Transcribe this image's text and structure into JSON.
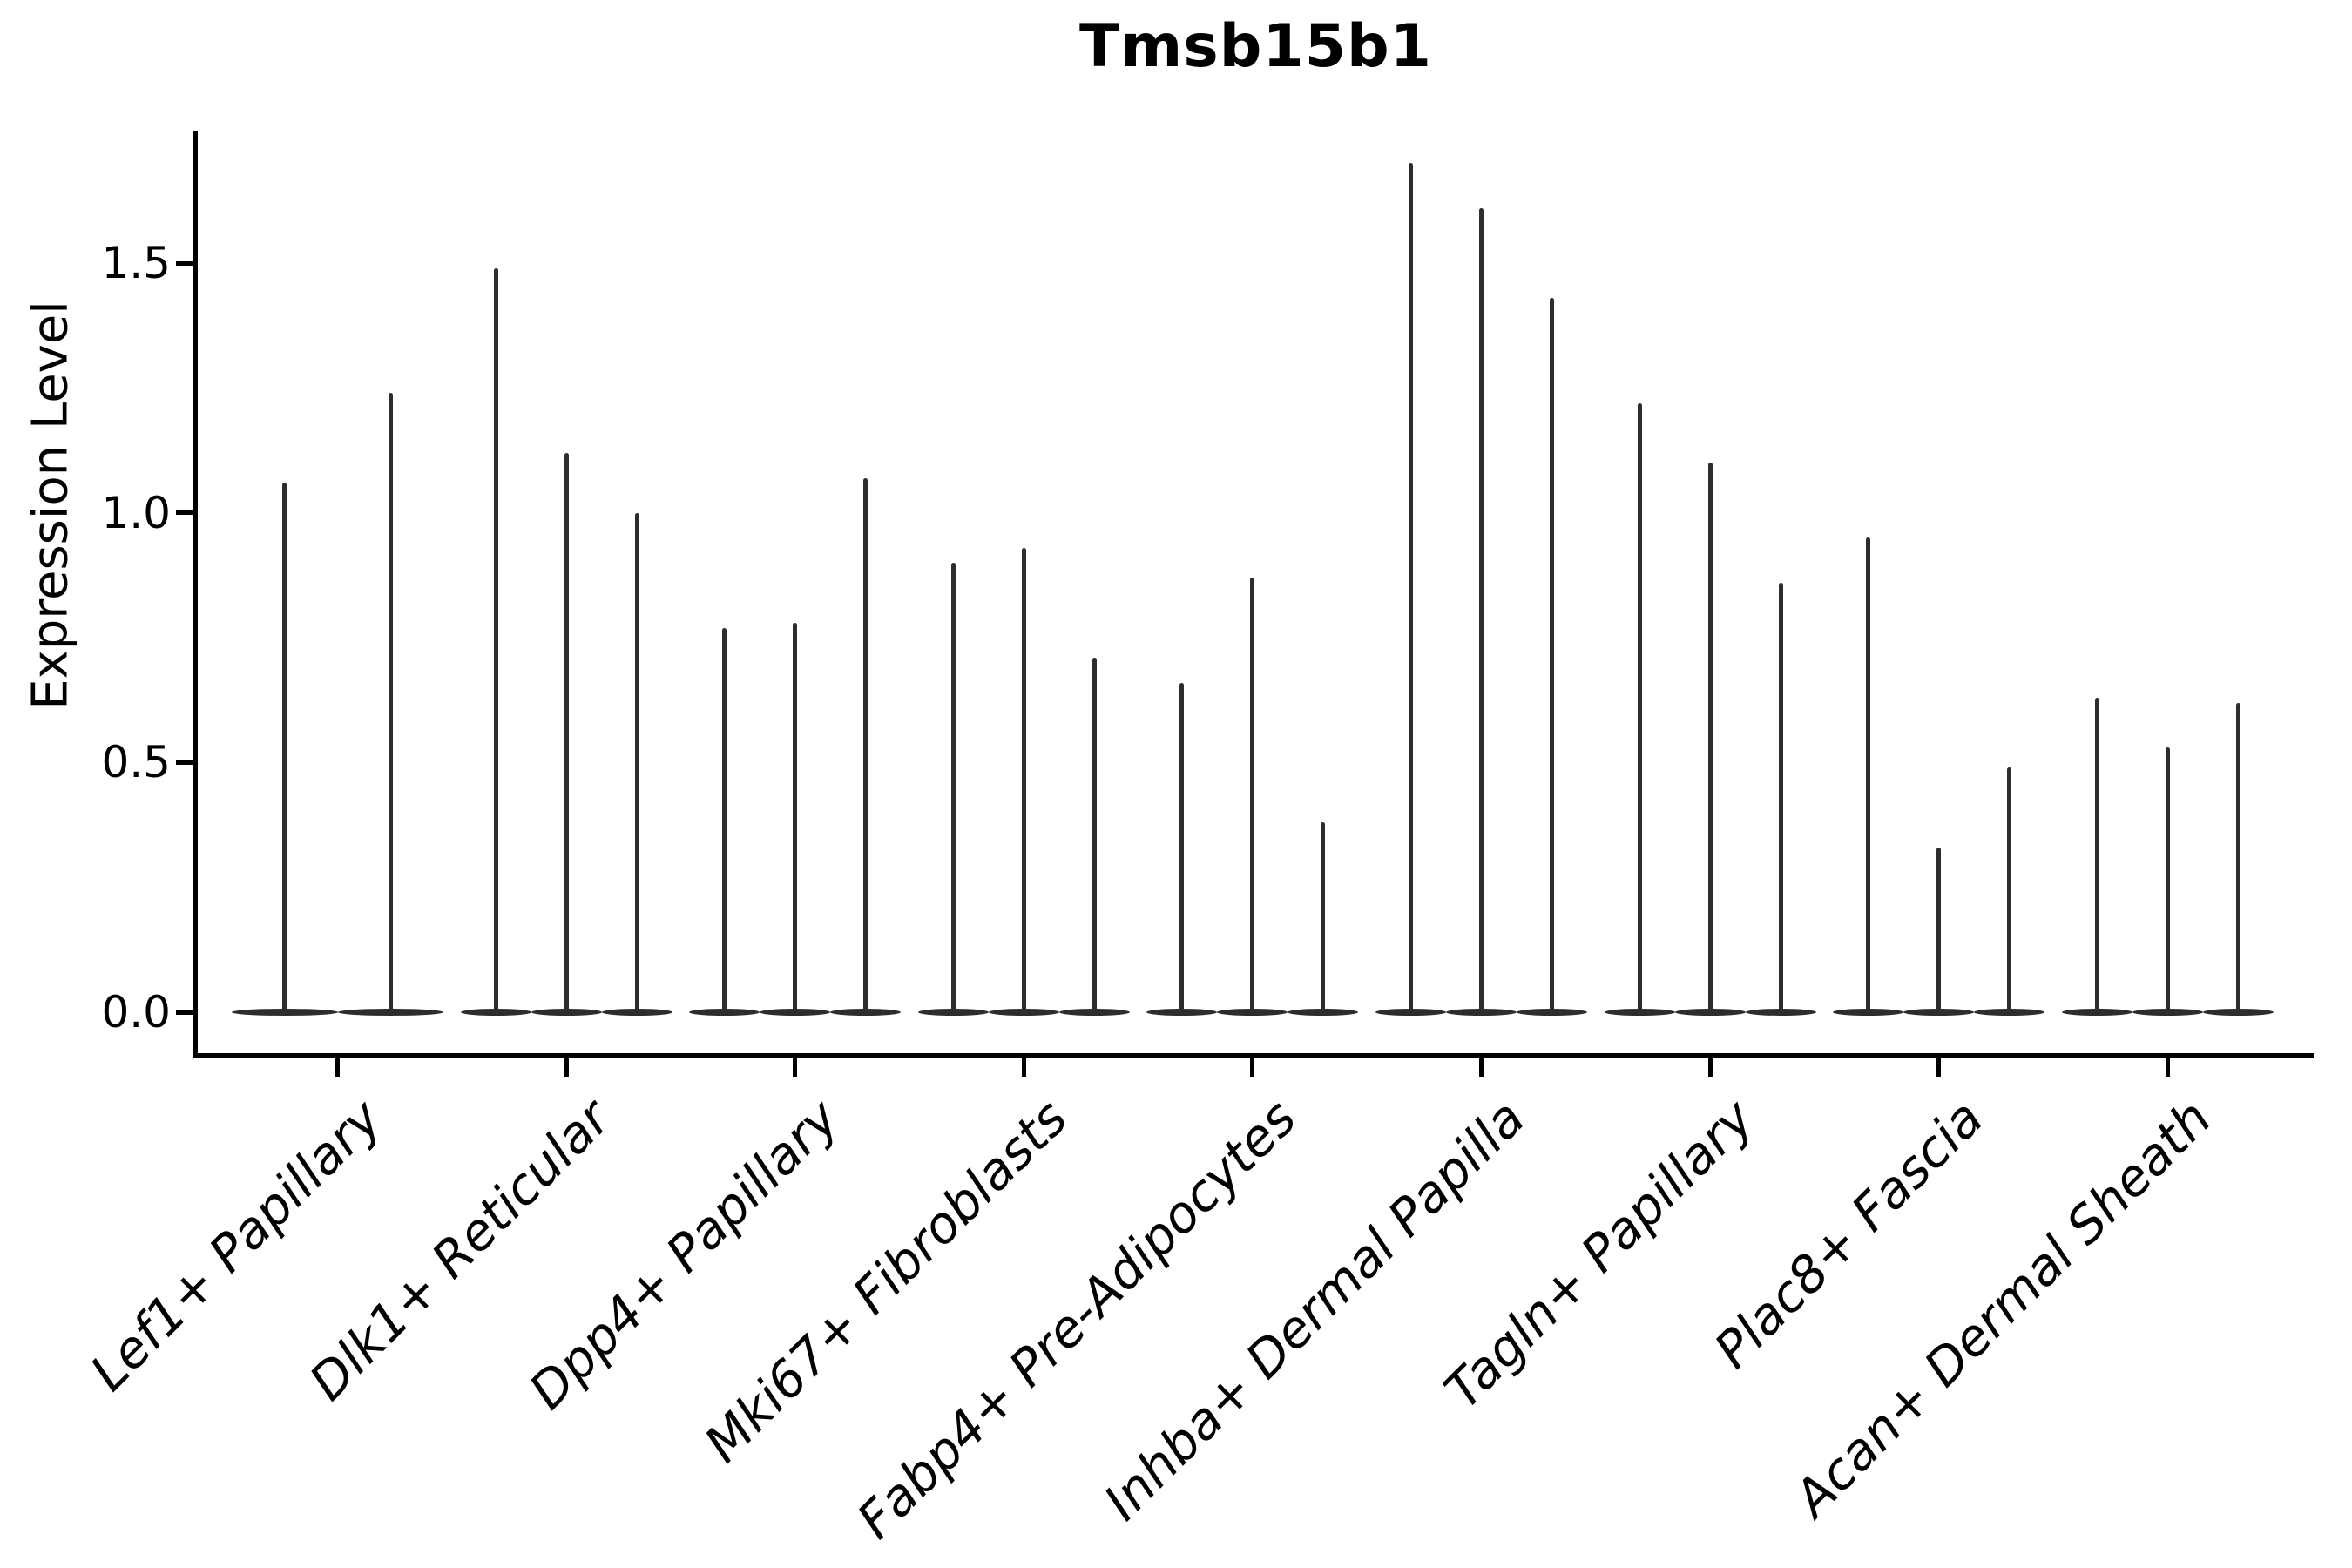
{
  "title": "Tmsb15b1",
  "colors": {
    "violin": "#2d2d2d",
    "axis": "#000000",
    "background": "#ffffff"
  },
  "chart_data": {
    "type": "violin",
    "title": "Tmsb15b1",
    "xlabel": "",
    "ylabel": "Expression Level",
    "ylim": [
      -0.08,
      1.77
    ],
    "grid": false,
    "legend": null,
    "yticks": [
      {
        "label": "0.0",
        "value": 0.0
      },
      {
        "label": "0.5",
        "value": 0.5
      },
      {
        "label": "1.0",
        "value": 1.0
      },
      {
        "label": "1.5",
        "value": 1.5
      }
    ],
    "categories": [
      "Lef1+ Papillary",
      "Dlk1+ Reticular",
      "Dpp4+ Papillary",
      "Mki67+ Fibroblasts",
      "Fabp4+ Pre-Adipocytes",
      "Inhba+ Dermal Papilla",
      "Tagln+ Papillary",
      "Plac8+ Fascia",
      "Acan+ Dermal Sheath"
    ],
    "groups": [
      {
        "category": "Lef1+ Papillary",
        "violin_max": [
          1.06,
          1.24
        ]
      },
      {
        "category": "Dlk1+ Reticular",
        "violin_max": [
          1.49,
          1.12,
          1.0
        ]
      },
      {
        "category": "Dpp4+ Papillary",
        "violin_max": [
          0.77,
          0.78,
          1.07
        ]
      },
      {
        "category": "Mki67+ Fibroblasts",
        "violin_max": [
          0.9,
          0.93,
          0.71
        ]
      },
      {
        "category": "Fabp4+ Pre-Adipocytes",
        "violin_max": [
          0.66,
          0.87,
          0.38
        ]
      },
      {
        "category": "Inhba+ Dermal Papilla",
        "violin_max": [
          1.7,
          1.61,
          1.43
        ]
      },
      {
        "category": "Tagln+ Papillary",
        "violin_max": [
          1.22,
          1.1,
          0.86
        ]
      },
      {
        "category": "Plac8+ Fascia",
        "violin_max": [
          0.95,
          0.33,
          0.49
        ]
      },
      {
        "category": "Acan+ Dermal Sheath",
        "violin_max": [
          0.63,
          0.53,
          0.62
        ]
      }
    ],
    "violins_note": "each violin rendered as near-zero-width density: thin vertical max-spike over flat base at 0"
  }
}
